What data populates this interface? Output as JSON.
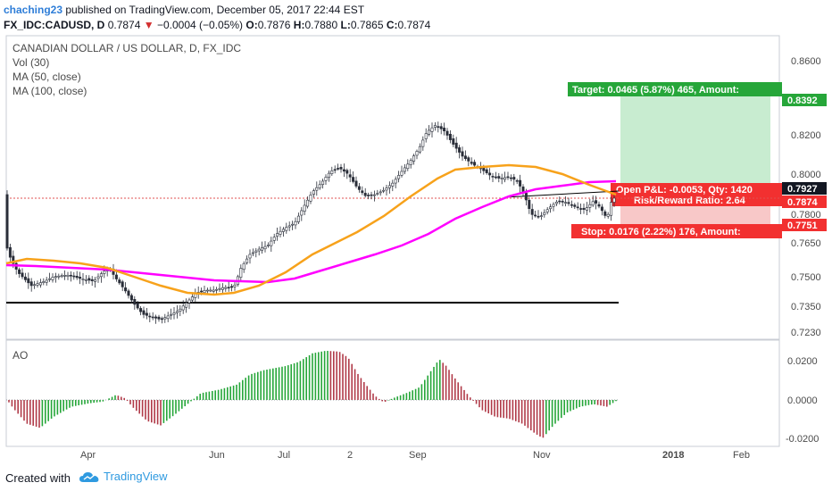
{
  "header": {
    "author": "chaching23",
    "published": "published on TradingView.com, December 05, 2017 22:44 EST",
    "symbol": "FX_IDC:CADUSD, D",
    "last": "0.7874",
    "change": "−0.0004 (−0.05%)",
    "o_label": "O:",
    "o_value": "0.7876",
    "h_label": "H:",
    "h_value": "0.7880",
    "l_label": "L:",
    "l_value": "0.7865",
    "c_label": "C:",
    "c_value": "0.7874"
  },
  "legend": {
    "title": "CANADIAN DOLLAR / US DOLLAR, D, FX_IDC",
    "vol": "Vol (30)",
    "ma50": "MA (50, close)",
    "ma100": "MA (100, close)",
    "ao": "AO"
  },
  "position": {
    "target_label": "Target: 0.0465 (5.87%) 465, Amount:",
    "stop_label": "Stop: 0.0176 (2.22%) 176, Amount:",
    "pnl_label": "Open P&L: -0.0053, Qty: 1420",
    "rr_label": "Risk/Reward Ratio: 2.64",
    "target_price": "0.8392",
    "entry_price": "0.7927",
    "current_price": "0.7874",
    "stop_price": "0.7751"
  },
  "price_axis": [
    "0.8600",
    "0.8392",
    "0.8200",
    "0.8000",
    "0.7800",
    "0.7650",
    "0.7500",
    "0.7350",
    "0.7230"
  ],
  "ao_axis": [
    "0.0200",
    "0.0000",
    "-0.0200"
  ],
  "time_axis": [
    "Apr",
    "Jun",
    "Jul",
    "2",
    "Sep",
    "Nov",
    "2018",
    "Feb"
  ],
  "footer": {
    "created_with": "Created with",
    "brand": "TradingView"
  },
  "colors": {
    "ma50": "#f7a21b",
    "ma100": "#ff00ff",
    "target_zone": "#c8ecd0",
    "stop_zone": "#f8c8c8",
    "target_label_bg": "#26a639",
    "stop_label_bg": "#f23030",
    "ao_up": "#26a639",
    "ao_down": "#b03a48",
    "support_line": "#000000"
  }
}
